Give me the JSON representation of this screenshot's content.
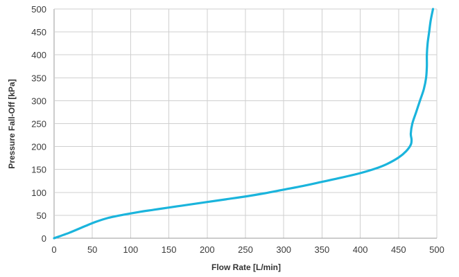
{
  "chart_data": {
    "type": "line",
    "xlabel": "Flow Rate [L/min]",
    "ylabel": "Pressure Fall-Off [kPa]",
    "xlim": [
      0,
      500
    ],
    "ylim": [
      0,
      500
    ],
    "xticks": [
      0,
      50,
      100,
      150,
      200,
      250,
      300,
      350,
      400,
      450,
      500
    ],
    "yticks": [
      0,
      50,
      100,
      150,
      200,
      250,
      300,
      350,
      400,
      450,
      500
    ],
    "grid": true,
    "series": [
      {
        "color": "#1ab4dc",
        "x": [
          0,
          20,
          40,
          55,
          70,
          90,
          110,
          130,
          150,
          175,
          200,
          225,
          250,
          275,
          300,
          325,
          350,
          375,
          400,
          420,
          435,
          450,
          460,
          466,
          467,
          466,
          468,
          473,
          478,
          483,
          486,
          487,
          487,
          488,
          490,
          492,
          495
        ],
        "y": [
          0,
          12,
          26,
          36,
          44,
          51,
          57,
          62,
          67,
          73,
          79,
          85,
          91,
          98,
          106,
          114,
          123,
          132,
          142,
          152,
          162,
          176,
          190,
          204,
          215,
          228,
          250,
          275,
          300,
          325,
          350,
          375,
          400,
          425,
          450,
          475,
          500
        ]
      }
    ]
  }
}
